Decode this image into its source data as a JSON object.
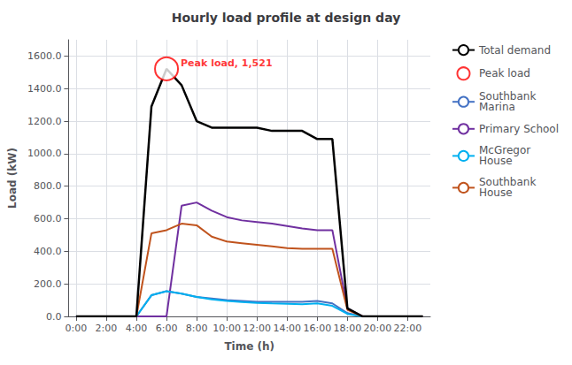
{
  "chart_data": {
    "type": "line",
    "title": "Hourly load profile at design day",
    "xlabel": "Time (h)",
    "ylabel": "Load (kW)",
    "x": [
      0,
      1,
      2,
      3,
      4,
      5,
      6,
      7,
      8,
      9,
      10,
      11,
      12,
      13,
      14,
      15,
      16,
      17,
      18,
      19,
      20,
      21,
      22,
      23
    ],
    "xlim": [
      -0.5,
      23.5
    ],
    "xticks": [
      {
        "value": 0,
        "label": "0:00"
      },
      {
        "value": 2,
        "label": "2:00"
      },
      {
        "value": 4,
        "label": "4:00"
      },
      {
        "value": 6,
        "label": "6:00"
      },
      {
        "value": 8,
        "label": "8:00"
      },
      {
        "value": 10,
        "label": "10:00"
      },
      {
        "value": 12,
        "label": "12:00"
      },
      {
        "value": 14,
        "label": "14:00"
      },
      {
        "value": 16,
        "label": "16:00"
      },
      {
        "value": 18,
        "label": "18:00"
      },
      {
        "value": 20,
        "label": "20:00"
      },
      {
        "value": 22,
        "label": "22:00"
      }
    ],
    "ylim": [
      0,
      1700
    ],
    "yticks": [
      {
        "value": 0,
        "label": "0.0"
      },
      {
        "value": 200,
        "label": "200.0"
      },
      {
        "value": 400,
        "label": "400.0"
      },
      {
        "value": 600,
        "label": "600.0"
      },
      {
        "value": 800,
        "label": "800.0"
      },
      {
        "value": 1000,
        "label": "1000.0"
      },
      {
        "value": 1200,
        "label": "1200.0"
      },
      {
        "value": 1400,
        "label": "1400.0"
      },
      {
        "value": 1600,
        "label": "1600.0"
      }
    ],
    "grid": true,
    "legend": "right",
    "series": [
      {
        "name": "Total demand",
        "type": "line",
        "color": "#000000",
        "values": [
          0,
          0,
          0,
          0,
          0,
          1290,
          1521,
          1421,
          1200,
          1160,
          1160,
          1160,
          1160,
          1140,
          1140,
          1140,
          1090,
          1090,
          50,
          0,
          0,
          0,
          0,
          0
        ]
      },
      {
        "name": "Peak load",
        "type": "scatter",
        "marker": "circle-open",
        "color": "#FF0000",
        "x": [
          6
        ],
        "values": [
          1521
        ]
      },
      {
        "name": "Southbank\nMarina",
        "type": "line",
        "color": "#4472C4",
        "values": [
          0,
          0,
          0,
          0,
          0,
          130,
          155,
          140,
          120,
          110,
          100,
          95,
          90,
          90,
          90,
          90,
          95,
          80,
          20,
          0,
          0,
          0,
          0,
          0
        ]
      },
      {
        "name": "Primary School",
        "type": "line",
        "color": "#7030A0",
        "values": [
          0,
          0,
          0,
          0,
          0,
          0,
          0,
          680,
          700,
          650,
          610,
          590,
          580,
          570,
          555,
          540,
          530,
          530,
          50,
          0,
          0,
          0,
          0,
          0
        ]
      },
      {
        "name": "McGregor\nHouse",
        "type": "line",
        "color": "#00B0F0",
        "values": [
          0,
          0,
          0,
          0,
          0,
          130,
          155,
          140,
          120,
          105,
          95,
          88,
          83,
          80,
          78,
          75,
          80,
          65,
          15,
          0,
          0,
          0,
          0,
          0
        ]
      },
      {
        "name": "Southbank\nHouse",
        "type": "line",
        "color": "#C0531D",
        "values": [
          0,
          0,
          0,
          0,
          0,
          510,
          530,
          570,
          560,
          490,
          460,
          450,
          440,
          430,
          420,
          415,
          415,
          415,
          40,
          0,
          0,
          0,
          0,
          0
        ]
      }
    ],
    "annotations": [
      {
        "text": "Peak load, 1,521",
        "x": 6,
        "y": 1521,
        "color": "#FF0000"
      }
    ]
  }
}
